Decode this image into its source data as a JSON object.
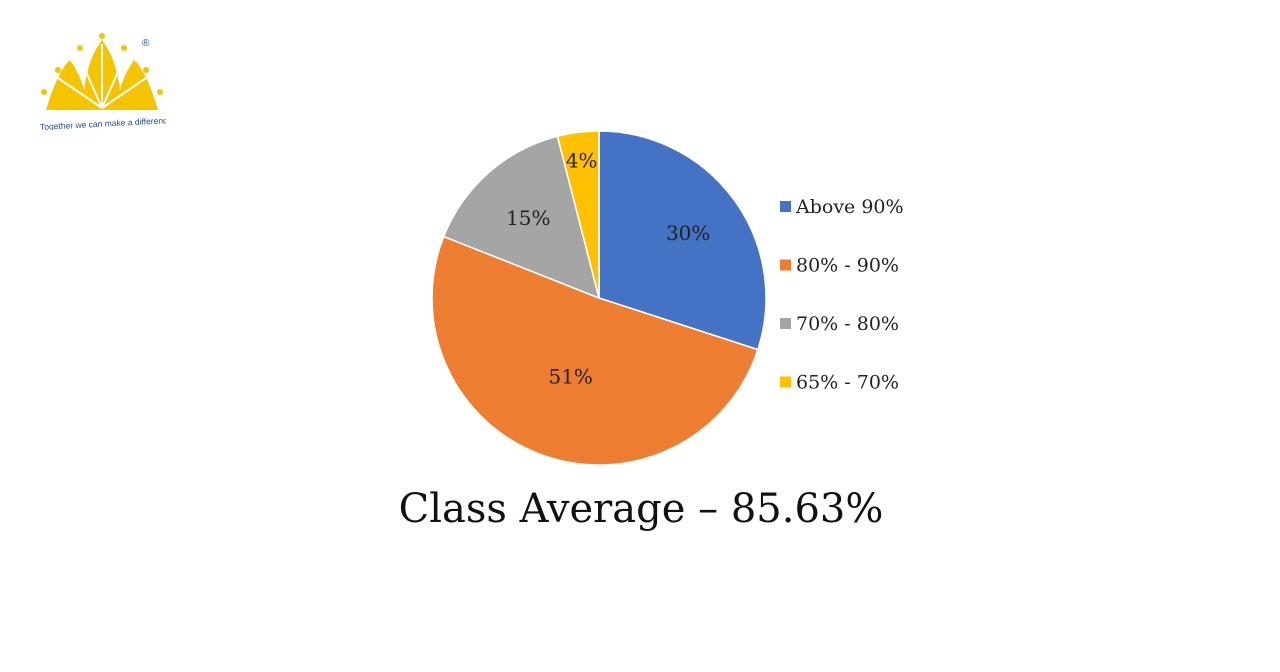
{
  "logo": {
    "tagline": "Together we can make a difference",
    "registered_mark": "®",
    "color": "#F5C400",
    "text_color": "#1F4E9C"
  },
  "chart_data": {
    "type": "pie",
    "categories": [
      "Above 90%",
      "80% - 90%",
      "70% - 80%",
      "65% - 70%"
    ],
    "values": [
      30,
      51,
      15,
      4
    ],
    "labels": [
      "30%",
      "51%",
      "15%",
      "4%"
    ],
    "colors": [
      "#4472C4",
      "#ED7D31",
      "#A5A5A5",
      "#FFC000"
    ],
    "start_angle_deg": 0,
    "direction": "clockwise",
    "legend_position": "right"
  },
  "caption": "Class Average – 85.63%"
}
